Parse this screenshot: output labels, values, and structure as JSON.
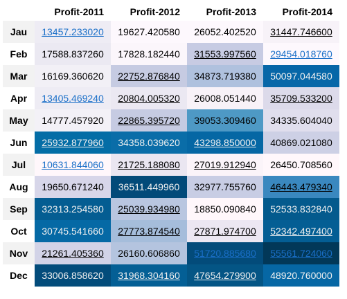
{
  "columns": [
    "Profit-2011",
    "Profit-2012",
    "Profit-2013",
    "Profit-2014"
  ],
  "rows": [
    {
      "label": "Jau",
      "cells": [
        {
          "value": "13457.233020",
          "bg": "#eeecf4",
          "style": "link"
        },
        {
          "value": "19627.420580",
          "bg": "#fdf8fd",
          "style": "plain"
        },
        {
          "value": "26052.402520",
          "bg": "#fdf8fd",
          "style": "plain"
        },
        {
          "value": "31447.746600",
          "bg": "#f7f2f8",
          "style": "underline"
        }
      ]
    },
    {
      "label": "Feb",
      "cells": [
        {
          "value": "17588.837260",
          "bg": "#ebe9f2",
          "style": "plain"
        },
        {
          "value": "17828.182440",
          "bg": "#fbf6fb",
          "style": "plain"
        },
        {
          "value": "31553.997560",
          "bg": "#c7cbe3",
          "style": "underline"
        },
        {
          "value": "29454.018760",
          "bg": "#fdf8fd",
          "style": "link"
        }
      ]
    },
    {
      "label": "Mar",
      "cells": [
        {
          "value": "16169.360620",
          "bg": "#f2f0f6",
          "style": "plain"
        },
        {
          "value": "22752.876840",
          "bg": "#c6cbe2",
          "style": "underline"
        },
        {
          "value": "34873.719380",
          "bg": "#afc1de",
          "style": "plain"
        },
        {
          "value": "50097.044580",
          "bg": "#0767a8",
          "style": "dark"
        }
      ]
    },
    {
      "label": "Apr",
      "cells": [
        {
          "value": "13405.469240",
          "bg": "#eeecf4",
          "style": "link"
        },
        {
          "value": "20804.005320",
          "bg": "#ebe8f2",
          "style": "underline"
        },
        {
          "value": "26008.051440",
          "bg": "#f8f2f8",
          "style": "plain"
        },
        {
          "value": "35709.533200",
          "bg": "#dcdaea",
          "style": "underline"
        }
      ]
    },
    {
      "label": "May",
      "cells": [
        {
          "value": "14777.457920",
          "bg": "#f3f1f7",
          "style": "plain"
        },
        {
          "value": "22865.395720",
          "bg": "#c6cbe2",
          "style": "underline"
        },
        {
          "value": "39053.309460",
          "bg": "#4e99c5",
          "style": "plain"
        },
        {
          "value": "34335.604040",
          "bg": "#e0deed",
          "style": "plain"
        }
      ]
    },
    {
      "label": "Jun",
      "cells": [
        {
          "value": "25932.877960",
          "bg": "#046da6",
          "style": "dark-underline"
        },
        {
          "value": "34358.039620",
          "bg": "#0a6da8",
          "style": "dark"
        },
        {
          "value": "43298.850000",
          "bg": "#0567a4",
          "style": "dark-underline"
        },
        {
          "value": "40869.021080",
          "bg": "#cdd0e5",
          "style": "plain"
        }
      ]
    },
    {
      "label": "Jul",
      "cells": [
        {
          "value": "10631.844060",
          "bg": "#fff7fb",
          "style": "link"
        },
        {
          "value": "21725.188080",
          "bg": "#eae6f1",
          "style": "underline"
        },
        {
          "value": "27019.912940",
          "bg": "#fbf4f9",
          "style": "underline"
        },
        {
          "value": "26450.708560",
          "bg": "#fff7fb",
          "style": "plain"
        }
      ]
    },
    {
      "label": "Aug",
      "cells": [
        {
          "value": "19650.671240",
          "bg": "#d7d6e9",
          "style": "plain"
        },
        {
          "value": "36511.449960",
          "bg": "#024a79",
          "style": "dark"
        },
        {
          "value": "32977.755760",
          "bg": "#c8cde4",
          "style": "plain"
        },
        {
          "value": "46443.479340",
          "bg": "#3a88bf",
          "style": "underline"
        }
      ]
    },
    {
      "label": "Sep",
      "cells": [
        {
          "value": "32313.254580",
          "bg": "#045d92",
          "style": "dark"
        },
        {
          "value": "25039.934980",
          "bg": "#b9c6e0",
          "style": "underline"
        },
        {
          "value": "18850.090840",
          "bg": "#fff7fb",
          "style": "plain"
        },
        {
          "value": "52533.832840",
          "bg": "#045a8d",
          "style": "dark"
        }
      ]
    },
    {
      "label": "Oct",
      "cells": [
        {
          "value": "30745.541660",
          "bg": "#0569a5",
          "style": "dark"
        },
        {
          "value": "27773.874540",
          "bg": "#a5bddb",
          "style": "underline"
        },
        {
          "value": "27871.974700",
          "bg": "#ece7f2",
          "style": "underline"
        },
        {
          "value": "52342.497400",
          "bg": "#045e94",
          "style": "dark-underline"
        }
      ]
    },
    {
      "label": "Nov",
      "cells": [
        {
          "value": "21261.405360",
          "bg": "#d2d3e7",
          "style": "underline"
        },
        {
          "value": "26160.606860",
          "bg": "#b4c4df",
          "style": "plain"
        },
        {
          "value": "51720.885680",
          "bg": "#034b7a",
          "style": "link"
        },
        {
          "value": "55561.724060",
          "bg": "#023858",
          "style": "link"
        }
      ]
    },
    {
      "label": "Dec",
      "cells": [
        {
          "value": "33006.858620",
          "bg": "#034c7b",
          "style": "dark"
        },
        {
          "value": "31968.304160",
          "bg": "#045f95",
          "style": "dark-underline"
        },
        {
          "value": "47654.279900",
          "bg": "#045585",
          "style": "dark-underline"
        },
        {
          "value": "48920.760000",
          "bg": "#0667a4",
          "style": "dark"
        }
      ]
    }
  ]
}
